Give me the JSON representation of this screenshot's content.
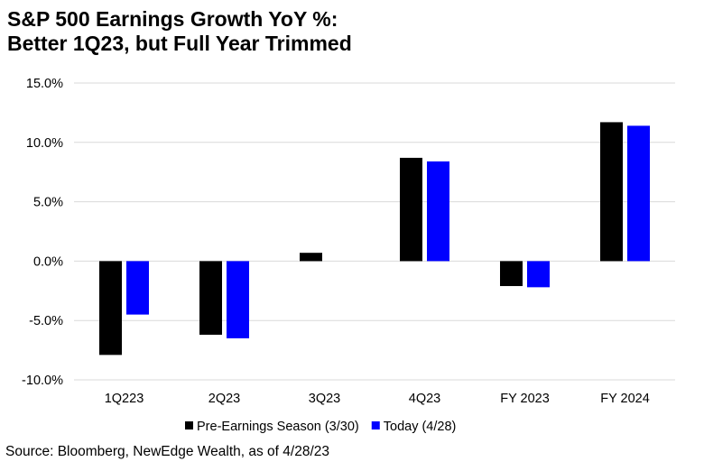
{
  "title_line1": "S&P 500 Earnings Growth YoY %:",
  "title_line2": "Better 1Q23, but Full Year Trimmed",
  "source": "Source: Bloomberg, NewEdge Wealth, as of 4/28/23",
  "chart_data": {
    "type": "bar",
    "categories": [
      "1Q223",
      "2Q23",
      "3Q23",
      "4Q23",
      "FY 2023",
      "FY 2024"
    ],
    "series": [
      {
        "name": "Pre-Earnings Season (3/30)",
        "color": "#000000",
        "values": [
          -7.9,
          -6.2,
          0.7,
          8.7,
          -2.1,
          11.7
        ]
      },
      {
        "name": "Today (4/28)",
        "color": "#0000FF",
        "values": [
          -4.5,
          -6.5,
          0.0,
          8.4,
          -2.2,
          11.4
        ]
      }
    ],
    "ylim": [
      -10,
      15
    ],
    "yticks": [
      -10,
      -5,
      0,
      5,
      10,
      15
    ],
    "ytick_labels": [
      "-10.0%",
      "-5.0%",
      "0.0%",
      "5.0%",
      "10.0%",
      "15.0%"
    ],
    "grid": true,
    "legend_position": "bottom"
  }
}
